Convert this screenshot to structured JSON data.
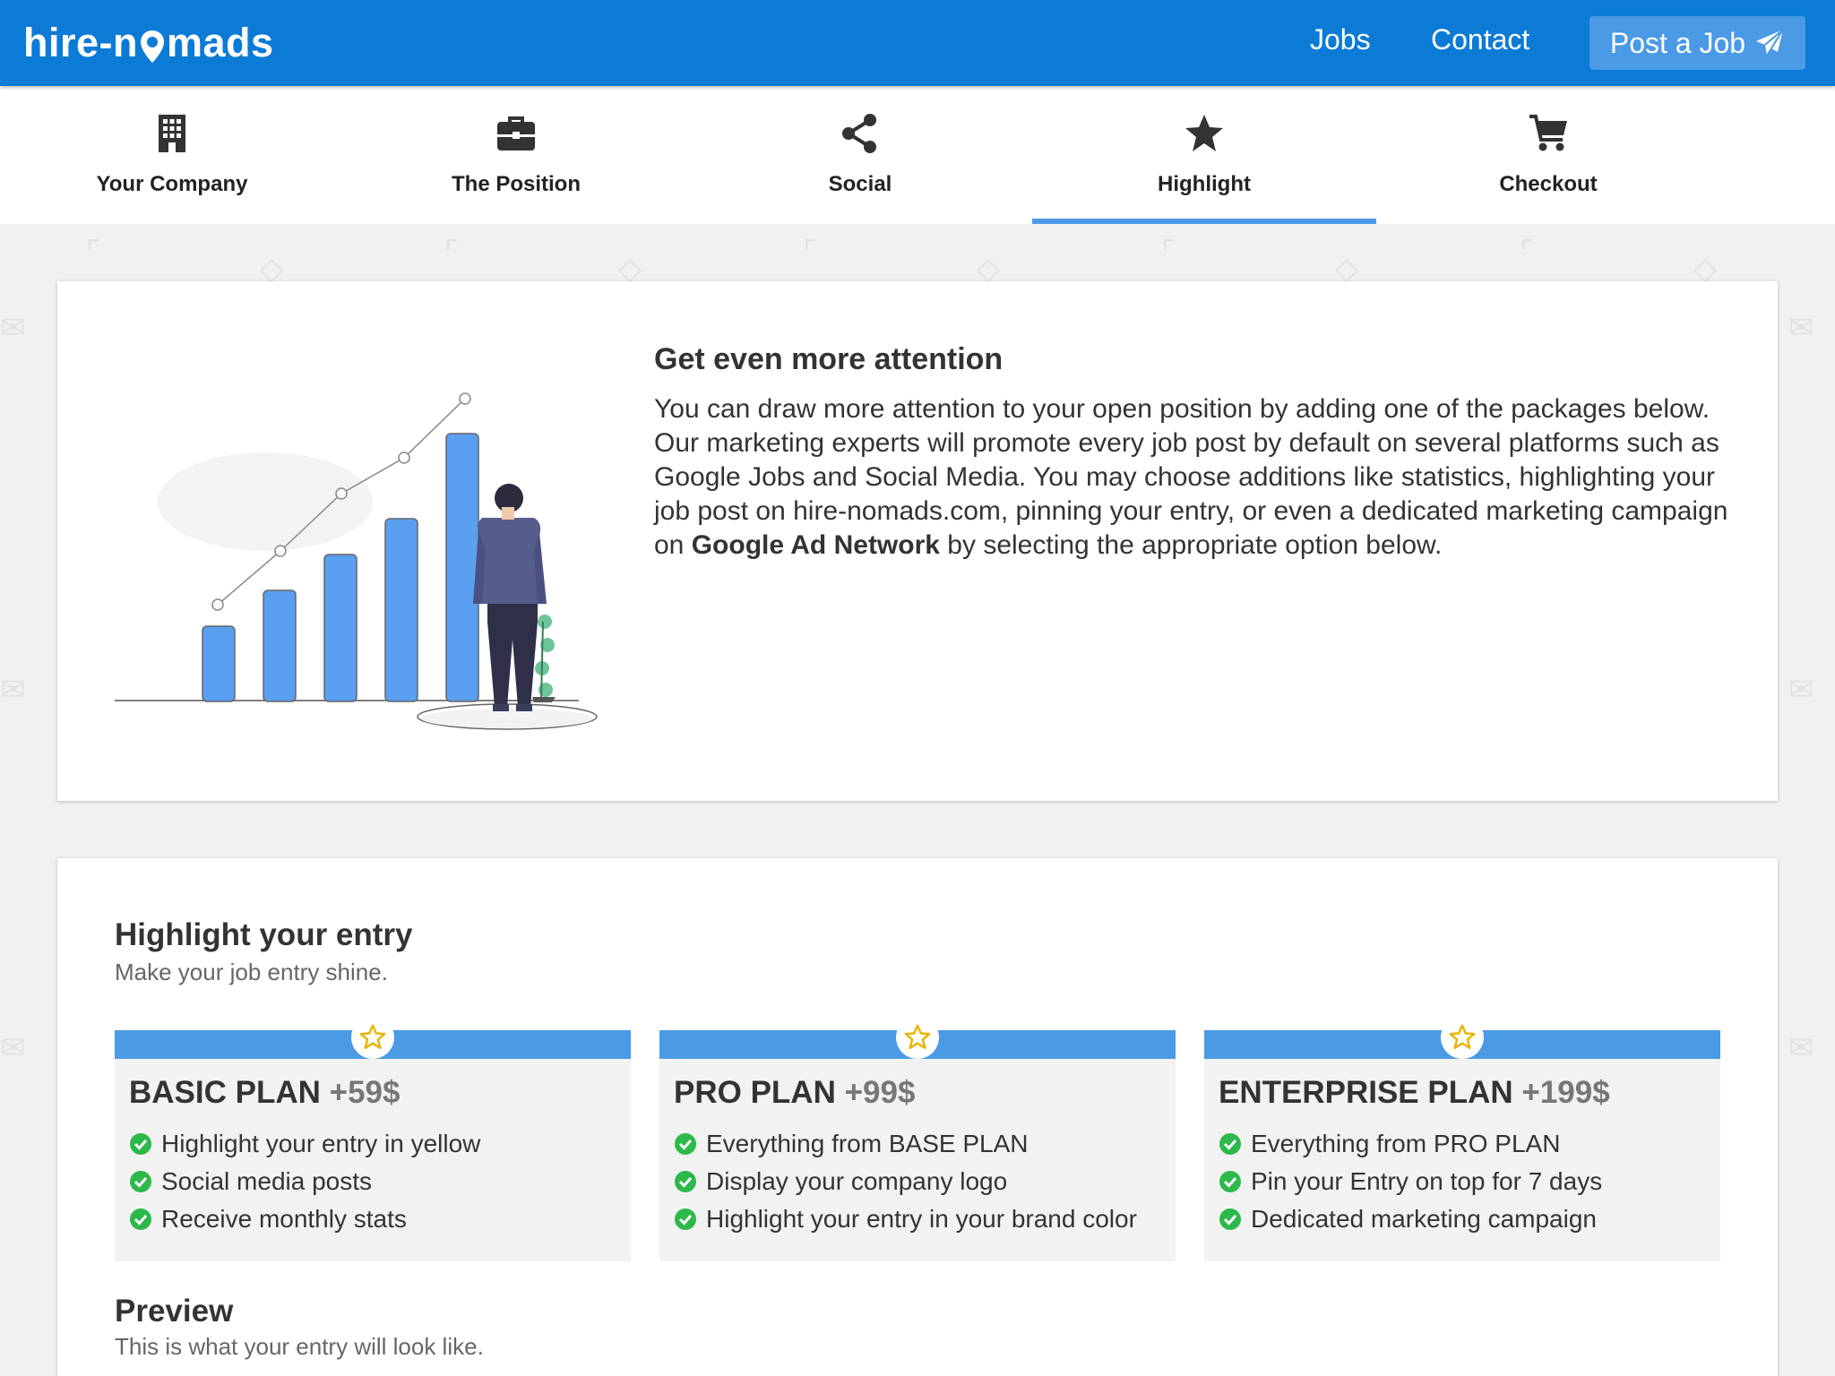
{
  "header": {
    "logo_part1": "hire-n",
    "logo_part2": "mads",
    "nav_jobs": "Jobs",
    "nav_contact": "Contact",
    "post_job": "Post a Job",
    "brand_color": "#0b7bd6"
  },
  "steps": [
    {
      "label": "Your Company",
      "icon": "building-icon"
    },
    {
      "label": "The Position",
      "icon": "briefcase-icon"
    },
    {
      "label": "Social",
      "icon": "share-icon"
    },
    {
      "label": "Highlight",
      "icon": "star-icon",
      "active": true
    },
    {
      "label": "Checkout",
      "icon": "cart-icon"
    }
  ],
  "intro": {
    "title": "Get even more attention",
    "text_before": "You can draw more attention to your open position by adding one of the packages below. Our marketing experts will promote every job post by default on several platforms such as Google Jobs and Social Media. You may choose additions like statistics, highlighting your job post on hire-nomads.com, pinning your entry, or even a dedicated marketing campaign on ",
    "text_bold": "Google Ad Network",
    "text_after": " by selecting the appropriate option below."
  },
  "highlight": {
    "title": "Highlight your entry",
    "subtitle": "Make your job entry shine.",
    "accent_color": "#4a9ae6",
    "plans": [
      {
        "name": "BASIC PLAN",
        "price": "+59$",
        "features": [
          "Highlight your entry in yellow",
          "Social media posts",
          "Receive monthly stats"
        ]
      },
      {
        "name": "PRO PLAN",
        "price": "+99$",
        "features": [
          "Everything from BASE PLAN",
          "Display your company logo",
          "Highlight your entry in your brand color"
        ]
      },
      {
        "name": "ENTERPRISE PLAN",
        "price": "+199$",
        "features": [
          "Everything from PRO PLAN",
          "Pin your Entry on top for 7 days",
          "Dedicated marketing campaign"
        ]
      }
    ]
  },
  "preview": {
    "title": "Preview",
    "subtitle": "This is what your entry will look like."
  }
}
